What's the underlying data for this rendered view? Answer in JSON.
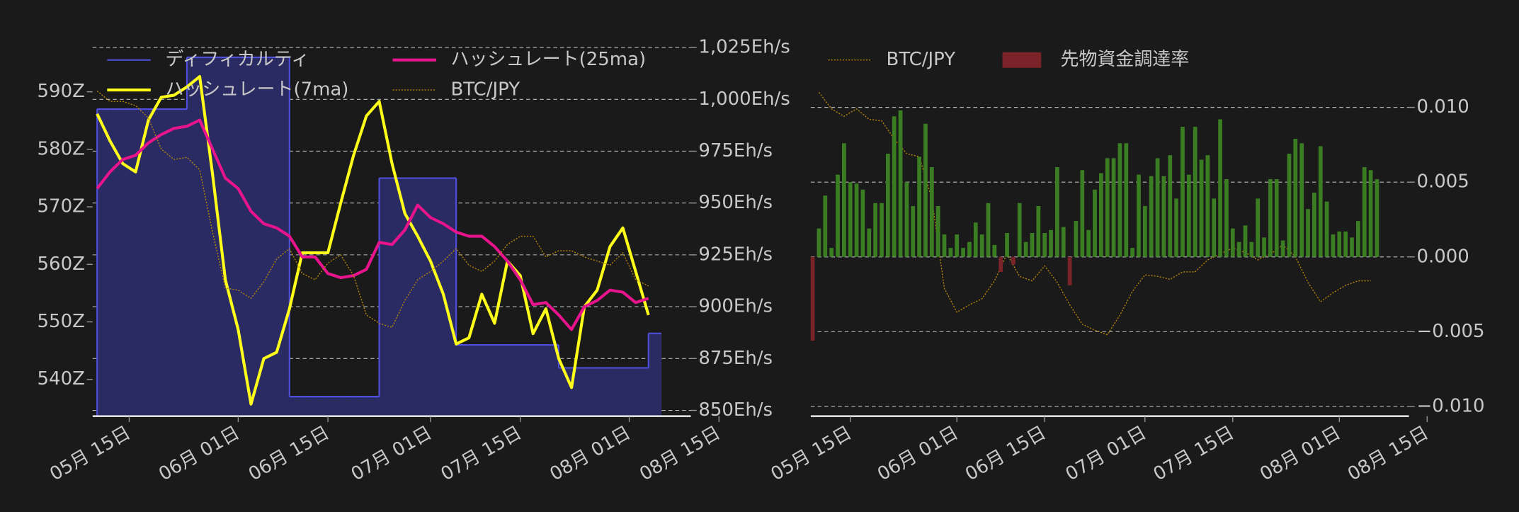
{
  "chart_data": [
    {
      "type": "line",
      "x": [
        10,
        12,
        14,
        16,
        18,
        20,
        22,
        24,
        26,
        28,
        30,
        32,
        34,
        36,
        38,
        40,
        42,
        44,
        46,
        48,
        50,
        52,
        54,
        56,
        58,
        60,
        62,
        64,
        66,
        68,
        70,
        72,
        74,
        76,
        78,
        80,
        82,
        84,
        86,
        88,
        90,
        92,
        94,
        96
      ],
      "xlim": [
        9.3,
        102.6
      ],
      "xticks": [
        {
          "value": 15,
          "label": "05月 15日"
        },
        {
          "value": 32,
          "label": "06月 01日"
        },
        {
          "value": 46,
          "label": "06月 15日"
        },
        {
          "value": 62,
          "label": "07月 01日"
        },
        {
          "value": 76,
          "label": "07月 15日"
        },
        {
          "value": 93,
          "label": "08月 01日"
        },
        {
          "value": 107,
          "label": "08月 15日"
        }
      ],
      "ylim": [
        533.6,
        598.9
      ],
      "yticks": [
        {
          "value": 540,
          "label": "540Z"
        },
        {
          "value": 550,
          "label": "550Z"
        },
        {
          "value": 560,
          "label": "560Z"
        },
        {
          "value": 570,
          "label": "570Z"
        },
        {
          "value": 580,
          "label": "580Z"
        },
        {
          "value": 590,
          "label": "590Z"
        }
      ],
      "y2lim": [
        847.2,
        1028.3
      ],
      "y2ticks": [
        {
          "value": 850,
          "label": "850Eh/s"
        },
        {
          "value": 875,
          "label": "875Eh/s"
        },
        {
          "value": 900,
          "label": "900Eh/s"
        },
        {
          "value": 925,
          "label": "925Eh/s"
        },
        {
          "value": 950,
          "label": "950Eh/s"
        },
        {
          "value": 975,
          "label": "975Eh/s"
        },
        {
          "value": 1000,
          "label": "1,000Eh/s"
        },
        {
          "value": 1025,
          "label": "1,025Eh/s"
        }
      ],
      "grid": "y2",
      "legend_columns": 2,
      "series": [
        {
          "name": "ディフィカルティ",
          "color": "#5050e0",
          "fill": "#2b2b63",
          "style": "step-area",
          "values": [
            587,
            587,
            587,
            587,
            587,
            587,
            587,
            596,
            596,
            596,
            596,
            596,
            596,
            596,
            596,
            537,
            537,
            537,
            537,
            537,
            537,
            537,
            575,
            575,
            575,
            575,
            575,
            575,
            546,
            546,
            546,
            546,
            546,
            546,
            546,
            546,
            542,
            542,
            542,
            542,
            542,
            542,
            542,
            548
          ]
        },
        {
          "name": "ハッシュレート(7ma)",
          "color": "#ffff1a",
          "axis": "y2",
          "values": [
            993,
            980,
            969,
            965,
            990,
            1001,
            1002,
            1006,
            1011,
            964,
            913,
            889,
            853,
            875,
            878,
            899,
            926,
            926,
            926,
            950,
            973,
            992,
            999,
            969,
            945,
            934,
            922,
            906,
            882,
            885,
            906,
            892,
            922,
            915,
            887,
            899,
            875,
            861,
            900,
            908,
            929,
            938,
            917,
            896
          ]
        },
        {
          "name": "ハッシュレート(25ma)",
          "color": "#e8148c",
          "axis": "y2",
          "values": [
            957,
            965,
            971,
            973,
            979,
            983,
            986,
            987,
            990,
            976,
            962,
            957,
            946,
            940,
            938,
            934,
            924,
            924,
            916,
            914,
            915,
            918,
            931,
            930,
            937,
            949,
            943,
            940,
            936,
            934,
            934,
            929,
            922,
            913,
            901,
            902,
            896,
            889,
            900,
            903,
            908,
            907,
            902,
            904
          ]
        },
        {
          "name": "BTC/JPY",
          "color": "#b8860b",
          "axis": "y2",
          "style": "dotted",
          "values": [
            1004,
            999,
            999,
            997,
            991,
            976,
            971,
            972,
            966,
            936,
            909,
            908,
            904,
            912,
            923,
            928,
            916,
            913,
            921,
            925,
            915,
            896,
            892,
            890,
            903,
            913,
            917,
            922,
            928,
            920,
            917,
            922,
            930,
            934,
            934,
            924,
            927,
            927,
            924,
            922,
            920,
            926,
            913,
            910
          ]
        }
      ]
    },
    {
      "type": "bar",
      "x": [
        9,
        10,
        11,
        12,
        13,
        14,
        15,
        16,
        17,
        18,
        19,
        20,
        21,
        22,
        23,
        24,
        25,
        26,
        27,
        28,
        29,
        30,
        31,
        32,
        33,
        34,
        35,
        36,
        37,
        38,
        39,
        40,
        41,
        42,
        43,
        44,
        45,
        46,
        47,
        48,
        49,
        50,
        51,
        52,
        53,
        54,
        55,
        56,
        57,
        58,
        59,
        60,
        61,
        62,
        63,
        64,
        65,
        66,
        67,
        68,
        69,
        70,
        71,
        72,
        73,
        74,
        75,
        76,
        77,
        78,
        79,
        80,
        81,
        82,
        83,
        84,
        85,
        86,
        87,
        88,
        89,
        90,
        91,
        92,
        93,
        94,
        95,
        96,
        97,
        98,
        99
      ],
      "xlim": [
        8.7,
        104.1
      ],
      "xticks": [
        {
          "value": 15,
          "label": "05月 15日"
        },
        {
          "value": 32,
          "label": "06月 01日"
        },
        {
          "value": 46,
          "label": "06月 15日"
        },
        {
          "value": 62,
          "label": "07月 01日"
        },
        {
          "value": 76,
          "label": "07月 15日"
        },
        {
          "value": 93,
          "label": "08月 01日"
        },
        {
          "value": 107,
          "label": "08月 15日"
        }
      ],
      "ylim": [
        -0.01065,
        0.01446
      ],
      "yticks": [
        {
          "value": -0.01,
          "label": "−0.010"
        },
        {
          "value": -0.005,
          "label": "−0.005"
        },
        {
          "value": 0,
          "label": "0.000"
        },
        {
          "value": 0.005,
          "label": "0.005"
        },
        {
          "value": 0.01,
          "label": "0.010"
        }
      ],
      "yaxis_side": "right",
      "grid": true,
      "legend_columns": 2,
      "series": [
        {
          "name": "BTC/JPY",
          "color": "#b8860b",
          "style": "dotted",
          "x": [
            10,
            12,
            14,
            16,
            18,
            20,
            22,
            24,
            26,
            28,
            30,
            32,
            34,
            36,
            38,
            40,
            42,
            44,
            46,
            48,
            50,
            52,
            54,
            56,
            58,
            60,
            62,
            64,
            66,
            68,
            70,
            72,
            74,
            76,
            78,
            80,
            82,
            84,
            86,
            88,
            90,
            92,
            94,
            96,
            98
          ],
          "values": [
            0.011,
            0.0099,
            0.0094,
            0.0099,
            0.0092,
            0.0091,
            0.0079,
            0.0069,
            0.0067,
            0.0039,
            -0.0021,
            -0.0037,
            -0.0032,
            -0.0028,
            -0.0016,
            0.0002,
            -0.0013,
            -0.0016,
            -0.0006,
            -0.0017,
            -0.0032,
            -0.0045,
            -0.0049,
            -0.0052,
            -0.0039,
            -0.0023,
            -0.0012,
            -0.0013,
            -0.0015,
            -0.001,
            -0.001,
            -0.0002,
            0.0002,
            0.0006,
            0.0003,
            -0.0002,
            0.0002,
            0.0008,
            0,
            -0.0017,
            -0.003,
            -0.0024,
            -0.0019,
            -0.0016,
            -0.0016
          ]
        },
        {
          "name": "先物資金調達率",
          "color": "#7b2329",
          "positive_color": "#3b7d22",
          "values": [
            -0.0056,
            0.0019,
            0.0041,
            0.0006,
            0.0055,
            0.0076,
            0.005,
            0.0049,
            0.0045,
            0.0019,
            0.0036,
            0.0036,
            0.0069,
            0.0094,
            0.0098,
            0.005,
            0.0034,
            0.0067,
            0.0089,
            0.006,
            0.0034,
            0.0015,
            0.0006,
            0.0015,
            0.0006,
            0.001,
            0.0023,
            0.0015,
            0.0036,
            0.0008,
            -0.001,
            0.0016,
            -0.0005,
            0.0036,
            0.001,
            0.0016,
            0.0034,
            0.0016,
            0.0018,
            0.006,
            0.002,
            -0.0019,
            0.0024,
            0.0058,
            0.0018,
            0.0045,
            0.0056,
            0.0066,
            0.0066,
            0.0076,
            0.0076,
            0.0006,
            0.0055,
            0.0034,
            0.0054,
            0.0066,
            0.0054,
            0.0068,
            0.0039,
            0.0087,
            0.0055,
            0.0087,
            0.0065,
            0.0068,
            0.0039,
            0.0092,
            0.0052,
            0.0019,
            0.001,
            0.0021,
            0.001,
            0.0039,
            0.0013,
            0.0052,
            0.0052,
            0.0011,
            0.0069,
            0.0079,
            0.0076,
            0.0032,
            0.0043,
            0.0074,
            0.0037,
            0.0015,
            0.0017,
            0.0017,
            0.0013,
            0.0024,
            0.006,
            0.0058,
            0.0052
          ]
        }
      ]
    }
  ]
}
